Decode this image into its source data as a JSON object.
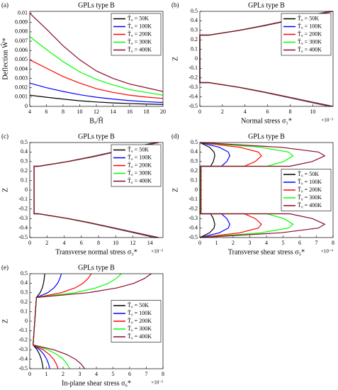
{
  "chart_data": [
    {
      "type": "line",
      "panel": "(a)",
      "title": "GPLs type B",
      "x_label": "Bₓ/Ĥ",
      "y_label": "Deflection Ŵ*",
      "x": [
        4,
        6,
        8,
        10,
        12,
        14,
        16,
        18,
        20
      ],
      "xlim": [
        4,
        20
      ],
      "xticks": [
        4,
        6,
        8,
        10,
        12,
        14,
        16,
        18,
        20
      ],
      "ylim": [
        0,
        0.0102
      ],
      "yticks": [
        0,
        0.001,
        0.002,
        0.003,
        0.004,
        0.005,
        0.006,
        0.007,
        0.008,
        0.009,
        0.01
      ],
      "legend": "upper right",
      "series": [
        {
          "name": "T̂₀ = 50K",
          "color": "#000000",
          "values": [
            0.0012,
            0.00098,
            0.00078,
            0.0006,
            0.00047,
            0.00037,
            0.0003,
            0.00025,
            0.00021
          ]
        },
        {
          "name": "T̂₀ = 100K",
          "color": "#0000ff",
          "values": [
            0.0025,
            0.002,
            0.0016,
            0.00125,
            0.00098,
            0.00078,
            0.00062,
            0.0005,
            0.00042
          ]
        },
        {
          "name": "T̂₀ = 200K",
          "color": "#ff0000",
          "values": [
            0.005,
            0.0041,
            0.0032,
            0.0025,
            0.0019,
            0.0015,
            0.0012,
            0.001,
            0.00085
          ]
        },
        {
          "name": "T̂₀ = 300K",
          "color": "#00ff00",
          "values": [
            0.0075,
            0.0061,
            0.0048,
            0.0037,
            0.0029,
            0.0023,
            0.0018,
            0.0015,
            0.0012
          ]
        },
        {
          "name": "T̂₀ = 400K",
          "color": "#8b0a2a",
          "values": [
            0.01,
            0.0083,
            0.0065,
            0.005,
            0.0038,
            0.003,
            0.0024,
            0.002,
            0.0016
          ]
        }
      ]
    },
    {
      "type": "line",
      "orientation": "horizontal",
      "panel": "(b)",
      "title": "GPLs type B",
      "x_label": "Normal stress σ₁*",
      "y_label": "Z",
      "x_exponent": "×10⁻³",
      "y": [
        -0.5,
        -0.45,
        -0.4,
        -0.35,
        -0.3,
        -0.25,
        -0.25,
        0.25,
        0.25,
        0.3,
        0.35,
        0.4,
        0.45,
        0.5
      ],
      "xlim": [
        0,
        0.0118
      ],
      "xticks": [
        0,
        {
          "value": 0.002,
          "label": "2"
        },
        {
          "value": 0.004,
          "label": "4"
        },
        {
          "value": 0.006,
          "label": "6"
        },
        {
          "value": 0.008,
          "label": "8"
        },
        {
          "value": 0.01,
          "label": "10"
        }
      ],
      "ylim": [
        -0.5,
        0.5
      ],
      "yticks": [
        -0.5,
        -0.4,
        -0.3,
        -0.2,
        -0.1,
        0,
        0.1,
        0.2,
        0.3,
        0.4,
        0.5
      ],
      "legend": "upper right",
      "series": [
        {
          "name": "T̂₀ = 50K",
          "color": "#000000",
          "values": [
            0.0115,
            0.009545,
            0.00759,
            0.005635,
            0.00345,
            0.000805,
            0,
            0,
            0.000805,
            0.00345,
            0.005635,
            0.00759,
            0.009545,
            0.0115
          ]
        },
        {
          "name": "T̂₀ = 100K",
          "color": "#0000ff",
          "values": [
            0.0115,
            0.009545,
            0.00759,
            0.005635,
            0.00345,
            0.000805,
            0,
            0,
            0.000805,
            0.00345,
            0.005635,
            0.00759,
            0.009545,
            0.0115
          ]
        },
        {
          "name": "T̂₀ = 200K",
          "color": "#ff0000",
          "values": [
            0.0116,
            0.009628,
            0.007656,
            0.005684,
            0.00348,
            0.000812,
            0,
            0,
            0.000812,
            0.00348,
            0.005684,
            0.007656,
            0.009628,
            0.0116
          ]
        },
        {
          "name": "T̂₀ = 300K",
          "color": "#00ff00",
          "values": [
            0.0117,
            0.009711,
            0.007722,
            0.005733,
            0.00351,
            0.000819,
            0,
            0,
            0.000819,
            0.00351,
            0.005733,
            0.007722,
            0.009711,
            0.0117
          ]
        },
        {
          "name": "T̂₀ = 400K",
          "color": "#8b0a2a",
          "values": [
            0.0118,
            0.009794,
            0.007788,
            0.005782,
            0.00354,
            0.000826,
            0,
            0,
            0.000826,
            0.00354,
            0.005782,
            0.007788,
            0.009794,
            0.0118
          ]
        }
      ]
    },
    {
      "type": "line",
      "orientation": "horizontal",
      "panel": "(c)",
      "title": "GPLs type B",
      "x_label": "Transverse normal stress σ₃*",
      "y_label": "Z",
      "x_exponent": "×10⁻³",
      "y": [
        -0.5,
        -0.45,
        -0.4,
        -0.35,
        -0.3,
        -0.25,
        -0.25,
        0.25,
        0.25,
        0.3,
        0.35,
        0.4,
        0.45,
        0.5
      ],
      "xlim": [
        0,
        0.0155
      ],
      "xticks": [
        0,
        {
          "value": 0.002,
          "label": "2"
        },
        {
          "value": 0.004,
          "label": "4"
        },
        {
          "value": 0.006,
          "label": "6"
        },
        {
          "value": 0.008,
          "label": "8"
        },
        {
          "value": 0.01,
          "label": "10"
        },
        {
          "value": 0.012,
          "label": "12"
        },
        {
          "value": 0.014,
          "label": "14"
        }
      ],
      "ylim": [
        -0.5,
        0.5
      ],
      "yticks": [
        -0.5,
        -0.4,
        -0.3,
        -0.2,
        -0.1,
        0,
        0.1,
        0.2,
        0.3,
        0.4,
        0.5
      ],
      "legend": "upper right",
      "series": [
        {
          "name": "T̂₀ = 50K",
          "color": "#000000",
          "values": [
            0.0146,
            0.012118,
            0.009636,
            0.007154,
            0.00438,
            0.001022,
            0.0005,
            0.0005,
            0.001022,
            0.00438,
            0.007154,
            0.009636,
            0.012118,
            0.0146
          ]
        },
        {
          "name": "T̂₀ = 100K",
          "color": "#0000ff",
          "values": [
            0.0147,
            0.012201,
            0.009702,
            0.007203,
            0.00441,
            0.001029,
            0.0005,
            0.0005,
            0.001029,
            0.00441,
            0.007203,
            0.009702,
            0.012201,
            0.0147
          ]
        },
        {
          "name": "T̂₀ = 200K",
          "color": "#ff0000",
          "values": [
            0.0148,
            0.012284,
            0.009768,
            0.007252,
            0.00444,
            0.001036,
            0.0005,
            0.0005,
            0.001036,
            0.00444,
            0.007252,
            0.009768,
            0.012284,
            0.0148
          ]
        },
        {
          "name": "T̂₀ = 300K",
          "color": "#00ff00",
          "values": [
            0.0149,
            0.012367,
            0.009834,
            0.007301,
            0.00447,
            0.001043,
            0.0005,
            0.0005,
            0.001043,
            0.00447,
            0.007301,
            0.009834,
            0.012367,
            0.0149
          ]
        },
        {
          "name": "T̂₀ = 400K",
          "color": "#8b0a2a",
          "values": [
            0.015,
            0.01245,
            0.0099,
            0.00735,
            0.0045,
            0.00105,
            0.0005,
            0.0005,
            0.00105,
            0.0045,
            0.00735,
            0.0099,
            0.01245,
            0.015
          ]
        }
      ]
    },
    {
      "type": "line",
      "orientation": "horizontal",
      "panel": "(d)",
      "title": "GPLs type B",
      "x_label": "Transverse shear stress σ₅*",
      "y_label": "Z",
      "x_exponent": "×10⁻⁴",
      "y": [
        0.5,
        0.45,
        0.4,
        0.36,
        0.3,
        0.25,
        0.25,
        -0.25,
        -0.25,
        -0.3,
        -0.36,
        -0.4,
        -0.45,
        -0.5
      ],
      "xlim": [
        0,
        0.0008
      ],
      "xticks": [
        0,
        {
          "value": 0.0001,
          "label": "1"
        },
        {
          "value": 0.0002,
          "label": "2"
        },
        {
          "value": 0.0003,
          "label": "3"
        },
        {
          "value": 0.0004,
          "label": "4"
        },
        {
          "value": 0.0005,
          "label": "5"
        },
        {
          "value": 0.0006,
          "label": "6"
        },
        {
          "value": 0.0007,
          "label": "7"
        },
        {
          "value": 0.0008,
          "label": "8"
        }
      ],
      "ylim": [
        -0.5,
        0.5
      ],
      "yticks": [
        -0.5,
        -0.4,
        -0.3,
        -0.2,
        -0.1,
        0,
        0.1,
        0.2,
        0.3,
        0.4,
        0.5
      ],
      "legend": "center right",
      "series": [
        {
          "name": "T̂₀ = 50K",
          "color": "#000000",
          "values": [
            0,
            5.85e-05,
            8.55e-05,
            9e-05,
            8.1e-05,
            6.48e-05,
            9e-07,
            9e-07,
            6.48e-05,
            8.1e-05,
            9e-05,
            8.55e-05,
            5.85e-05,
            0
          ]
        },
        {
          "name": "T̂₀ = 100K",
          "color": "#0000ff",
          "values": [
            0,
            0.000117,
            0.000171,
            0.00018,
            0.000162,
            0.0001296,
            1.8e-06,
            1.8e-06,
            0.0001296,
            0.000162,
            0.00018,
            0.000171,
            0.000117,
            0
          ]
        },
        {
          "name": "T̂₀ = 200K",
          "color": "#ff0000",
          "values": [
            0,
            0.0002405,
            0.0003515,
            0.00037,
            0.000333,
            0.0002664,
            3.7e-06,
            3.7e-06,
            0.0002664,
            0.000333,
            0.00037,
            0.0003515,
            0.0002405,
            0
          ]
        },
        {
          "name": "T̂₀ = 300K",
          "color": "#00ff00",
          "values": [
            0,
            0.000364,
            0.000532,
            0.00056,
            0.000504,
            0.0004032,
            5.6e-06,
            5.6e-06,
            0.0004032,
            0.000504,
            0.00056,
            0.000532,
            0.000364,
            0
          ]
        },
        {
          "name": "T̂₀ = 400K",
          "color": "#8b0a2a",
          "values": [
            0,
            0.0004875,
            0.0007125,
            0.00075,
            0.000675,
            0.00054,
            7.5e-06,
            7.5e-06,
            0.00054,
            0.000675,
            0.00075,
            0.0007125,
            0.0004875,
            0
          ]
        }
      ]
    },
    {
      "type": "line",
      "orientation": "horizontal",
      "panel": "(e)",
      "title": "GPLs type B",
      "x_label": "In-plane shear stress σ₆*",
      "y_label": "Z",
      "x_exponent": "×10⁻³",
      "y": [
        -0.5,
        -0.45,
        -0.4,
        -0.35,
        -0.3,
        -0.25,
        0.25,
        0.3,
        0.35,
        0.4,
        0.45,
        0.5
      ],
      "xlim": [
        0,
        0.008
      ],
      "xticks": [
        0,
        {
          "value": 0.001,
          "label": "1"
        },
        {
          "value": 0.002,
          "label": "2"
        },
        {
          "value": 0.003,
          "label": "3"
        },
        {
          "value": 0.004,
          "label": "4"
        },
        {
          "value": 0.005,
          "label": "5"
        },
        {
          "value": 0.006,
          "label": "6"
        },
        {
          "value": 0.007,
          "label": "7"
        },
        {
          "value": 0.008,
          "label": "8"
        }
      ],
      "ylim": [
        -0.5,
        0.5
      ],
      "yticks": [
        -0.5,
        -0.4,
        -0.3,
        -0.2,
        -0.1,
        0,
        0.1,
        0.2,
        0.3,
        0.4,
        0.5
      ],
      "legend": "center right",
      "series": [
        {
          "name": "T̂₀ = 50K",
          "color": "#000000",
          "values": [
            0.0008,
            0.000758,
            0.000692,
            0.00059,
            0.00044,
            0.0002,
            0.0004,
            0.000625,
            0.00075,
            0.000825,
            0.00087,
            0.0009
          ]
        },
        {
          "name": "T̂₀ = 100K",
          "color": "#0000ff",
          "values": [
            0.0012,
            0.00113,
            0.00102,
            0.00085,
            0.0006,
            0.0002,
            0.0004,
            0.001075,
            0.00145,
            0.001675,
            0.00181,
            0.0019
          ]
        },
        {
          "name": "T̂₀ = 200K",
          "color": "#ff0000",
          "values": [
            0.0017,
            0.001595,
            0.00143,
            0.001175,
            0.0008,
            0.0002,
            0.0004,
            0.001885,
            0.00271,
            0.003205,
            0.003502,
            0.0037
          ]
        },
        {
          "name": "T̂₀ = 300K",
          "color": "#00ff00",
          "values": [
            0.0024,
            0.002246,
            0.002004,
            0.00163,
            0.00108,
            0.0002,
            0.0004,
            0.002695,
            0.00397,
            0.004735,
            0.005194,
            0.0055
          ]
        },
        {
          "name": "T̂₀ = 400K",
          "color": "#8b0a2a",
          "values": [
            0.0033,
            0.003083,
            0.002742,
            0.002215,
            0.00144,
            0.0002,
            0.0004,
            0.003505,
            0.00523,
            0.006265,
            0.006886,
            0.0073
          ]
        }
      ]
    }
  ]
}
